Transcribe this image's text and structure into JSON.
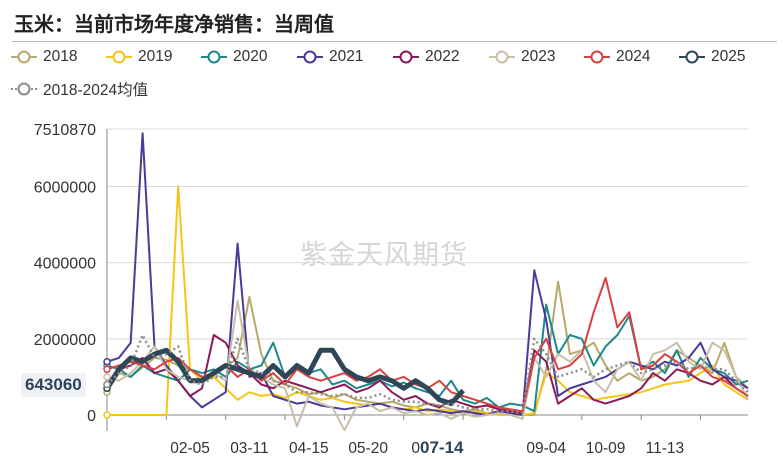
{
  "title": "玉米：当前市场年度净销售：当周值",
  "watermark": "紫金天风期货",
  "current_value_label": "643060",
  "highlight_x_label": "07-14",
  "chart_data": {
    "type": "line",
    "title": "玉米：当前市场年度净销售：当周值",
    "xlabel": "",
    "ylabel": "",
    "ylim": [
      0,
      7510870
    ],
    "y_ticks": [
      "7510870",
      "6000000",
      "4000000",
      "2000000",
      "0"
    ],
    "y_tick_values": [
      7510870,
      6000000,
      4000000,
      2000000,
      0
    ],
    "x_ticks": [
      "02-05",
      "03-11",
      "04-15",
      "05-20",
      "0",
      "09-04",
      "10-09",
      "11-13"
    ],
    "x_tick_index": [
      7,
      12,
      17,
      22,
      26,
      37,
      42,
      47
    ],
    "x_count": 55,
    "legend_position": "top",
    "grid": "horizontal",
    "series": [
      {
        "name": "2018",
        "color": "#b5a96b",
        "style": "solid",
        "values": [
          600000,
          1100000,
          1000000,
          1250000,
          1500000,
          1450000,
          1300000,
          1200000,
          1000000,
          1100000,
          1250000,
          1500000,
          3100000,
          1600000,
          900000,
          800000,
          700000,
          550000,
          600000,
          450000,
          550000,
          400000,
          350000,
          300000,
          350000,
          250000,
          200000,
          300000,
          250000,
          150000,
          100000,
          150000,
          50000,
          100000,
          50000,
          0,
          0,
          1200000,
          3500000,
          1600000,
          1700000,
          1900000,
          1300000,
          900000,
          1100000,
          900000,
          1000000,
          1200000,
          1700000,
          1500000,
          1300000,
          1100000,
          1900000,
          1000000,
          700000
        ]
      },
      {
        "name": "2019",
        "color": "#f5c518",
        "style": "solid",
        "values": [
          0,
          0,
          0,
          0,
          0,
          0,
          6000000,
          1200000,
          900000,
          1000000,
          700000,
          400000,
          600000,
          500000,
          550000,
          450000,
          600000,
          500000,
          400000,
          450000,
          350000,
          300000,
          250000,
          300000,
          200000,
          150000,
          200000,
          100000,
          150000,
          100000,
          50000,
          100000,
          50000,
          0,
          0,
          0,
          50000,
          1100000,
          900000,
          600000,
          500000,
          400000,
          450000,
          500000,
          550000,
          600000,
          700000,
          800000,
          850000,
          900000,
          1100000,
          1300000,
          800000,
          600000,
          400000
        ]
      },
      {
        "name": "2020",
        "color": "#1a8a8a",
        "style": "solid",
        "values": [
          1300000,
          1200000,
          1000000,
          1300000,
          1100000,
          1000000,
          900000,
          1200000,
          1100000,
          1200000,
          1000000,
          1400000,
          1200000,
          1300000,
          1900000,
          1000000,
          1300000,
          1100000,
          1200000,
          800000,
          900000,
          700000,
          800000,
          900000,
          750000,
          850000,
          700000,
          600000,
          500000,
          900000,
          400000,
          300000,
          450000,
          200000,
          300000,
          250000,
          100000,
          2900000,
          1600000,
          2100000,
          2000000,
          1300000,
          1800000,
          2100000,
          2600000,
          1200000,
          1400000,
          1100000,
          1700000,
          1000000,
          1500000,
          1200000,
          1100000,
          800000,
          900000
        ]
      },
      {
        "name": "2021",
        "color": "#4b3a9a",
        "style": "solid",
        "values": [
          1400000,
          1500000,
          1900000,
          7400000,
          1800000,
          1300000,
          900000,
          500000,
          200000,
          400000,
          600000,
          4500000,
          1000000,
          1100000,
          500000,
          400000,
          300000,
          350000,
          250000,
          200000,
          150000,
          200000,
          250000,
          300000,
          200000,
          150000,
          100000,
          150000,
          100000,
          50000,
          100000,
          50000,
          0,
          100000,
          50000,
          0,
          3800000,
          2500000,
          500000,
          700000,
          800000,
          900000,
          1000000,
          1200000,
          1400000,
          1300000,
          1200000,
          1400000,
          1300000,
          1500000,
          1900000,
          1200000,
          1000000,
          900000,
          700000
        ]
      },
      {
        "name": "2022",
        "color": "#8b1a5a",
        "style": "solid",
        "values": [
          800000,
          1200000,
          1300000,
          1500000,
          1100000,
          1200000,
          900000,
          500000,
          700000,
          2100000,
          1900000,
          1300000,
          1100000,
          800000,
          700000,
          900000,
          800000,
          700000,
          600000,
          700000,
          800000,
          600000,
          700000,
          900000,
          600000,
          400000,
          500000,
          300000,
          200000,
          400000,
          300000,
          200000,
          250000,
          150000,
          100000,
          50000,
          1700000,
          1400000,
          300000,
          500000,
          700000,
          400000,
          300000,
          400000,
          500000,
          700000,
          1100000,
          900000,
          1200000,
          1100000,
          900000,
          800000,
          1000000,
          700000,
          500000
        ]
      },
      {
        "name": "2023",
        "color": "#c8bfa8",
        "style": "solid",
        "values": [
          1000000,
          900000,
          1100000,
          1400000,
          1800000,
          1200000,
          1000000,
          900000,
          1000000,
          1100000,
          900000,
          3000000,
          1200000,
          1000000,
          800000,
          700000,
          -300000,
          500000,
          300000,
          200000,
          -400000,
          200000,
          300000,
          100000,
          200000,
          50000,
          100000,
          0,
          50000,
          -100000,
          50000,
          -50000,
          0,
          50000,
          0,
          -100000,
          1500000,
          1000000,
          1600000,
          1400000,
          1700000,
          900000,
          600000,
          1200000,
          1400000,
          900000,
          1600000,
          1700000,
          1900000,
          1400000,
          1200000,
          1900000,
          1700000,
          1000000,
          400000
        ]
      },
      {
        "name": "2024",
        "color": "#d94040",
        "style": "solid",
        "values": [
          1200000,
          1300000,
          1400000,
          1300000,
          1200000,
          1400000,
          1500000,
          1200000,
          1000000,
          1100000,
          1300000,
          1000000,
          1200000,
          900000,
          1100000,
          800000,
          1200000,
          1000000,
          900000,
          1000000,
          1100000,
          900000,
          1000000,
          1200000,
          900000,
          1000000,
          800000,
          700000,
          900000,
          600000,
          500000,
          400000,
          300000,
          200000,
          150000,
          100000,
          1500000,
          2000000,
          1200000,
          1300000,
          1600000,
          2700000,
          3600000,
          2300000,
          2700000,
          1200000,
          1300000,
          1600000,
          1400000,
          1100000,
          1300000,
          1000000,
          900000,
          700000,
          500000
        ]
      },
      {
        "name": "2025",
        "color": "#2f4656",
        "style": "thick",
        "values": [
          700000,
          1200000,
          1500000,
          1400000,
          1600000,
          1700000,
          1400000,
          900000,
          900000,
          1100000,
          1300000,
          1200000,
          1100000,
          1000000,
          1300000,
          1000000,
          1300000,
          1100000,
          1700000,
          1700000,
          1200000,
          1000000,
          900000,
          1000000,
          900000,
          700000,
          900000,
          700000,
          400000,
          300000,
          643060
        ]
      },
      {
        "name": "2018-2024均值",
        "color": "#8d8d8d",
        "style": "dotted",
        "values": [
          800000,
          1100000,
          1300000,
          2100000,
          1500000,
          1600000,
          1800000,
          900000,
          800000,
          1000000,
          1000000,
          2000000,
          1200000,
          1100000,
          900000,
          800000,
          600000,
          600000,
          550000,
          500000,
          550000,
          450000,
          450000,
          550000,
          400000,
          350000,
          350000,
          300000,
          250000,
          300000,
          200000,
          150000,
          150000,
          100000,
          100000,
          50000,
          2000000,
          1600000,
          1000000,
          1100000,
          1200000,
          1000000,
          1200000,
          1300000,
          1400000,
          1100000,
          1200000,
          1300000,
          1400000,
          1200000,
          1300000,
          1200000,
          1200000,
          900000,
          600000
        ]
      }
    ]
  }
}
